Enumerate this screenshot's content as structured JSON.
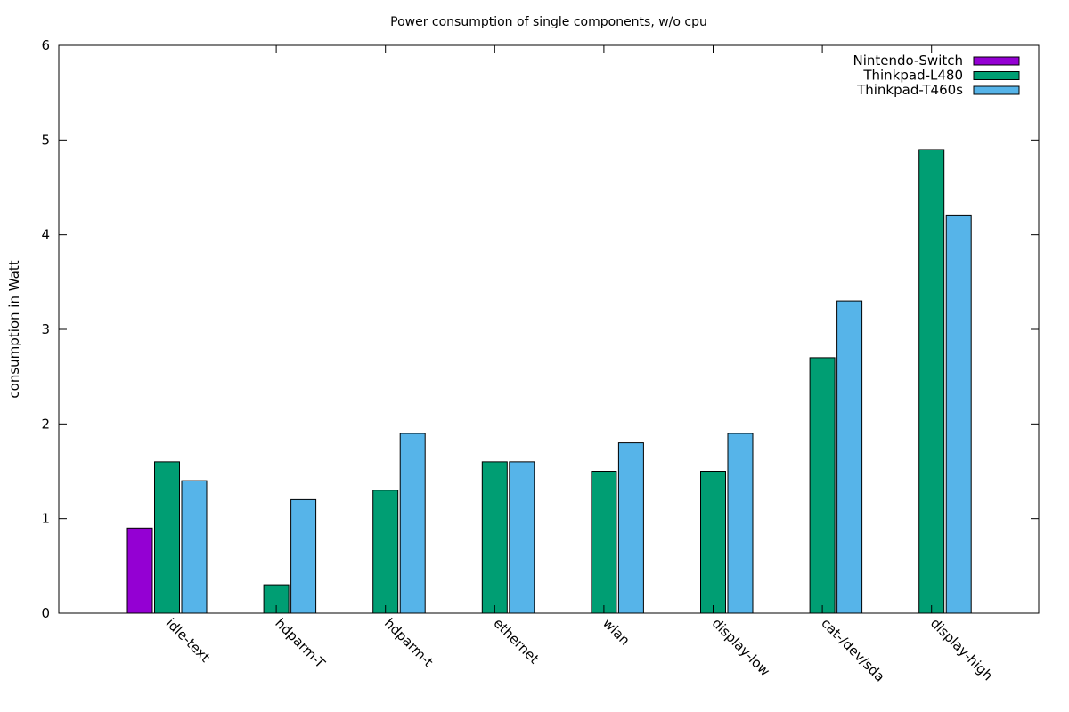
{
  "chart_data": {
    "type": "bar",
    "title": "Power consumption of single components, w/o cpu",
    "xlabel": "",
    "ylabel": "consumption in Watt",
    "ylim": [
      0,
      6
    ],
    "yticks": [
      "0",
      "1",
      "2",
      "3",
      "4",
      "5",
      "6"
    ],
    "categories": [
      "idle-text",
      "hdparm-T",
      "hdparm-t",
      "ethernet",
      "wlan",
      "display-low",
      "cat-/dev/sda",
      "display-high"
    ],
    "series": [
      {
        "name": "Nintendo-Switch",
        "color": "#9400d3",
        "values": [
          0.9,
          null,
          null,
          null,
          null,
          null,
          null,
          null
        ]
      },
      {
        "name": "Thinkpad-L480",
        "color": "#009e73",
        "values": [
          1.6,
          0.3,
          1.3,
          1.6,
          1.5,
          1.5,
          2.7,
          4.9
        ]
      },
      {
        "name": "Thinkpad-T460s",
        "color": "#56b4e9",
        "values": [
          1.4,
          1.2,
          1.9,
          1.6,
          1.8,
          1.9,
          3.3,
          4.2
        ]
      }
    ],
    "grid": false,
    "legend_position": "top-right"
  }
}
